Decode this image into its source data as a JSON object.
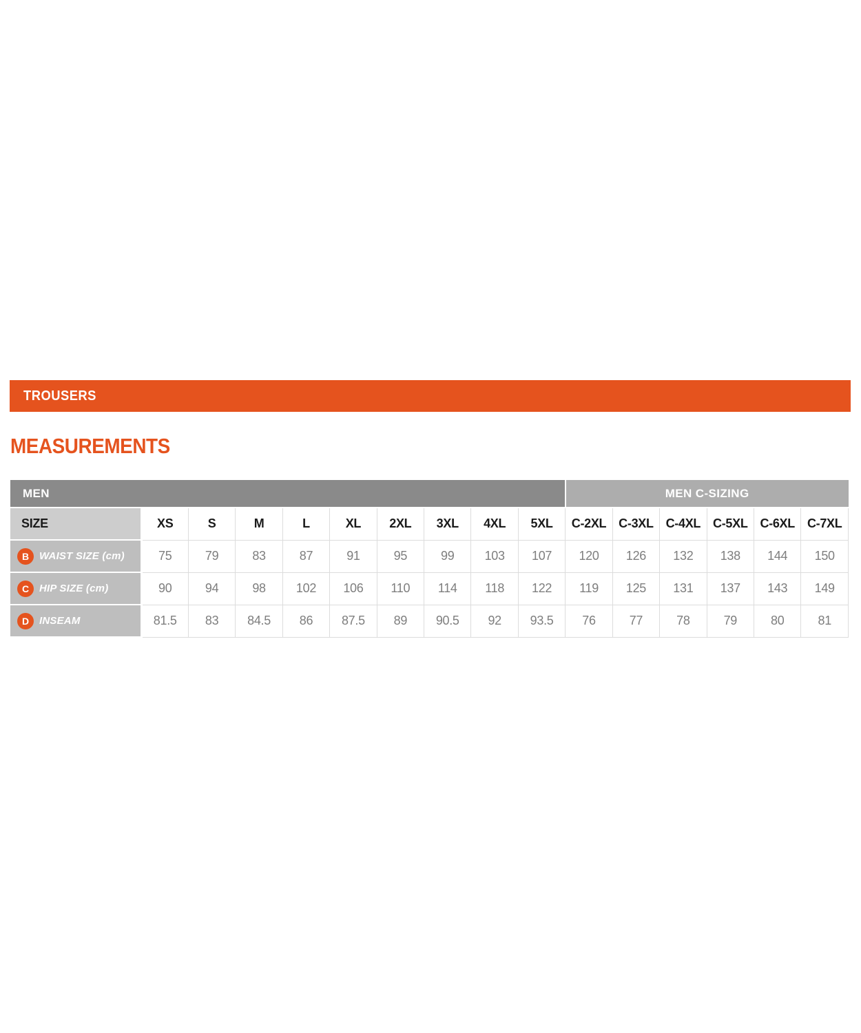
{
  "banner": {
    "label": "TROUSERS"
  },
  "section_title": "MEASUREMENTS",
  "colors": {
    "accent_orange": "#E5531E",
    "men_header_bg": "#8A8A8A",
    "c_sizing_header_bg": "#ADADAD",
    "size_label_bg": "#CDCDCD",
    "row_label_bg": "#BEBEBE",
    "cell_border": "#DCDCDC",
    "data_text": "#7E7E7E"
  },
  "table": {
    "group_headers": [
      {
        "label": "MEN",
        "span": 10,
        "key": "men"
      },
      {
        "label": "MEN C-SIZING",
        "span": 6,
        "key": "csizing"
      }
    ],
    "size_header": {
      "label": "SIZE",
      "columns": [
        "XS",
        "S",
        "M",
        "L",
        "XL",
        "2XL",
        "3XL",
        "4XL",
        "5XL",
        "C-2XL",
        "C-3XL",
        "C-4XL",
        "C-5XL",
        "C-6XL",
        "C-7XL"
      ]
    },
    "rows": [
      {
        "badge": "B",
        "label": "WAIST SIZE (cm)",
        "values": [
          "75",
          "79",
          "83",
          "87",
          "91",
          "95",
          "99",
          "103",
          "107",
          "120",
          "126",
          "132",
          "138",
          "144",
          "150"
        ]
      },
      {
        "badge": "C",
        "label": "HIP SIZE (cm)",
        "values": [
          "90",
          "94",
          "98",
          "102",
          "106",
          "110",
          "114",
          "118",
          "122",
          "119",
          "125",
          "131",
          "137",
          "143",
          "149"
        ]
      },
      {
        "badge": "D",
        "label": "INSEAM",
        "values": [
          "81.5",
          "83",
          "84.5",
          "86",
          "87.5",
          "89",
          "90.5",
          "92",
          "93.5",
          "76",
          "77",
          "78",
          "79",
          "80",
          "81"
        ]
      }
    ]
  }
}
